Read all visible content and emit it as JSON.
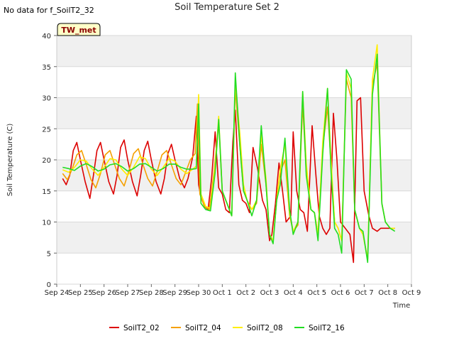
{
  "header": {
    "title": "Soil Temperature Set 2",
    "no_data_note": "No data for f_SoilT2_32"
  },
  "chart_data": {
    "type": "line",
    "title": "Soil Temperature Set 2",
    "xlabel": "Time",
    "ylabel": "Soil Temperature (C)",
    "badge": "TW_met",
    "ylim": [
      0,
      40
    ],
    "yticks": [
      0,
      5,
      10,
      15,
      20,
      25,
      30,
      35,
      40
    ],
    "xlim": [
      0,
      15
    ],
    "xtick_positions": [
      0,
      1,
      2,
      3,
      4,
      5,
      6,
      7,
      8,
      9,
      10,
      11,
      12,
      13,
      14,
      15
    ],
    "xtick_labels": [
      "Sep 24",
      "Sep 25",
      "Sep 26",
      "Sep 27",
      "Sep 28",
      "Sep 29",
      "Sep 30",
      "Oct 1",
      "Oct 2",
      "Oct 3",
      "Oct 4",
      "Oct 5",
      "Oct 6",
      "Oct 7",
      "Oct 8",
      "Oct 9"
    ],
    "grid": true,
    "legend_position": "bottom",
    "x_units": "days since Sep 24",
    "series": [
      {
        "name": "SoilT2_02",
        "color": "#dd0000",
        "x": [
          0.25,
          0.4,
          0.55,
          0.7,
          0.85,
          1.0,
          1.2,
          1.4,
          1.55,
          1.7,
          1.85,
          2.0,
          2.2,
          2.4,
          2.55,
          2.7,
          2.85,
          3.0,
          3.2,
          3.4,
          3.55,
          3.7,
          3.85,
          4.0,
          4.2,
          4.4,
          4.55,
          4.7,
          4.85,
          5.0,
          5.2,
          5.4,
          5.55,
          5.75,
          5.9,
          6.0,
          6.1,
          6.25,
          6.4,
          6.55,
          6.7,
          6.85,
          7.0,
          7.15,
          7.3,
          7.45,
          7.55,
          7.7,
          7.85,
          8.0,
          8.15,
          8.3,
          8.5,
          8.7,
          8.85,
          9.0,
          9.1,
          9.25,
          9.4,
          9.55,
          9.7,
          9.9,
          10.0,
          10.15,
          10.3,
          10.45,
          10.6,
          10.8,
          10.95,
          11.1,
          11.25,
          11.4,
          11.55,
          11.7,
          11.85,
          12.0,
          12.2,
          12.4,
          12.55,
          12.7,
          12.85,
          13.0,
          13.2,
          13.35,
          13.55,
          13.7,
          13.85,
          14.0,
          14.15,
          14.3
        ],
        "y": [
          17.0,
          16.0,
          17.5,
          21.5,
          22.8,
          20.0,
          16.5,
          13.8,
          17.5,
          21.5,
          22.8,
          20.0,
          16.5,
          14.5,
          17.5,
          22.0,
          23.2,
          20.0,
          16.5,
          14.2,
          17.5,
          21.5,
          23.0,
          20.0,
          16.5,
          14.5,
          17.0,
          21.0,
          22.5,
          20.0,
          17.0,
          15.5,
          17.0,
          20.5,
          27.0,
          16.0,
          14.0,
          12.5,
          12.0,
          17.0,
          24.5,
          15.5,
          14.5,
          12.0,
          11.5,
          23.0,
          28.0,
          16.0,
          13.5,
          13.0,
          11.5,
          22.0,
          18.5,
          13.5,
          12.0,
          7.0,
          8.0,
          13.0,
          19.5,
          15.0,
          10.0,
          11.0,
          24.5,
          15.0,
          12.0,
          11.5,
          8.5,
          25.5,
          18.0,
          11.0,
          9.0,
          8.0,
          9.0,
          27.5,
          20.0,
          10.0,
          9.0,
          8.0,
          3.5,
          29.5,
          30.0,
          15.0,
          11.0,
          9.0,
          8.5,
          9.0,
          9.0,
          9.0,
          9.0,
          9.0
        ]
      },
      {
        "name": "SoilT2_04",
        "color": "#f5a000",
        "x": [
          0.25,
          0.45,
          0.65,
          0.85,
          1.05,
          1.25,
          1.45,
          1.65,
          1.85,
          2.05,
          2.25,
          2.45,
          2.65,
          2.85,
          3.05,
          3.25,
          3.45,
          3.65,
          3.85,
          4.05,
          4.25,
          4.45,
          4.65,
          4.85,
          5.05,
          5.25,
          5.45,
          5.65,
          5.85,
          5.95,
          6.05,
          6.25,
          6.45,
          6.65,
          6.85,
          7.0,
          7.2,
          7.4,
          7.55,
          7.75,
          7.9,
          8.05,
          8.25,
          8.45,
          8.65,
          8.85,
          9.0,
          9.15,
          9.3,
          9.45,
          9.65,
          9.85,
          10.0,
          10.2,
          10.4,
          10.55,
          10.75,
          10.9,
          11.05,
          11.25,
          11.45,
          11.6,
          11.75,
          11.9,
          12.05,
          12.25,
          12.45,
          12.6,
          12.8,
          12.95,
          13.15,
          13.35,
          13.55,
          13.75,
          13.9,
          14.1,
          14.3
        ],
        "y": [
          17.8,
          16.8,
          18.5,
          20.8,
          21.5,
          19.2,
          16.8,
          15.5,
          17.8,
          20.8,
          21.5,
          19.2,
          17.0,
          15.8,
          18.2,
          21.0,
          21.8,
          19.2,
          17.0,
          15.8,
          18.2,
          20.8,
          21.5,
          19.2,
          17.0,
          16.0,
          18.0,
          20.0,
          21.0,
          29.0,
          14.5,
          12.5,
          12.0,
          18.0,
          26.0,
          15.0,
          13.0,
          11.0,
          31.5,
          22.0,
          15.0,
          13.5,
          12.0,
          13.0,
          22.5,
          16.0,
          8.0,
          7.0,
          13.5,
          18.0,
          20.0,
          11.0,
          8.5,
          9.5,
          29.0,
          18.0,
          12.0,
          11.5,
          8.0,
          22.0,
          28.5,
          19.0,
          10.0,
          9.0,
          7.0,
          33.0,
          30.0,
          12.0,
          9.0,
          8.0,
          4.0,
          32.0,
          35.5,
          13.0,
          10.0,
          9.0,
          9.0
        ]
      },
      {
        "name": "SoilT2_08",
        "color": "#ffee00",
        "x": [
          0.25,
          0.5,
          0.75,
          1.0,
          1.25,
          1.5,
          1.75,
          2.0,
          2.25,
          2.5,
          2.75,
          3.0,
          3.25,
          3.5,
          3.75,
          4.0,
          4.25,
          4.5,
          4.75,
          5.0,
          5.25,
          5.5,
          5.75,
          5.9,
          6.0,
          6.1,
          6.3,
          6.5,
          6.7,
          6.85,
          7.0,
          7.2,
          7.4,
          7.55,
          7.75,
          7.9,
          8.05,
          8.25,
          8.45,
          8.65,
          8.85,
          9.0,
          9.15,
          9.3,
          9.45,
          9.65,
          9.85,
          10.0,
          10.2,
          10.4,
          10.55,
          10.75,
          10.9,
          11.05,
          11.25,
          11.45,
          11.6,
          11.75,
          11.9,
          12.05,
          12.25,
          12.45,
          12.6,
          12.8,
          12.95,
          13.15,
          13.35,
          13.55,
          13.75,
          13.9,
          14.1,
          14.3
        ],
        "y": [
          18.4,
          18.0,
          18.8,
          20.0,
          19.8,
          18.5,
          17.5,
          18.8,
          20.2,
          20.0,
          18.5,
          17.5,
          18.8,
          20.5,
          20.2,
          18.5,
          17.5,
          18.8,
          20.2,
          19.8,
          18.5,
          17.8,
          18.5,
          19.0,
          30.5,
          14.5,
          12.5,
          12.2,
          19.0,
          27.0,
          15.0,
          13.0,
          11.0,
          32.5,
          24.0,
          16.0,
          13.5,
          12.0,
          13.5,
          24.0,
          17.0,
          8.0,
          7.0,
          13.5,
          18.5,
          22.5,
          11.5,
          8.5,
          10.0,
          31.0,
          19.5,
          12.0,
          11.5,
          8.0,
          23.0,
          31.5,
          20.0,
          10.0,
          9.0,
          7.0,
          34.0,
          31.5,
          12.0,
          9.0,
          8.0,
          4.0,
          33.0,
          38.5,
          13.0,
          10.0,
          9.0,
          9.0
        ]
      },
      {
        "name": "SoilT2_16",
        "color": "#22dd22",
        "x": [
          0.25,
          0.5,
          0.75,
          1.0,
          1.25,
          1.5,
          1.75,
          2.0,
          2.25,
          2.5,
          2.75,
          3.0,
          3.25,
          3.5,
          3.75,
          4.0,
          4.25,
          4.5,
          4.75,
          5.0,
          5.25,
          5.5,
          5.75,
          5.9,
          6.0,
          6.1,
          6.3,
          6.5,
          6.7,
          6.85,
          7.0,
          7.2,
          7.4,
          7.55,
          7.75,
          7.9,
          8.05,
          8.25,
          8.45,
          8.65,
          8.85,
          9.0,
          9.15,
          9.3,
          9.45,
          9.65,
          9.85,
          10.0,
          10.2,
          10.4,
          10.55,
          10.75,
          10.9,
          11.05,
          11.25,
          11.45,
          11.6,
          11.75,
          11.9,
          12.05,
          12.25,
          12.45,
          12.6,
          12.8,
          12.95,
          13.15,
          13.35,
          13.55,
          13.75,
          13.9,
          14.1,
          14.3
        ],
        "y": [
          18.8,
          18.6,
          18.3,
          19.0,
          19.4,
          18.9,
          18.2,
          18.5,
          19.2,
          19.4,
          18.9,
          18.2,
          18.6,
          19.3,
          19.4,
          18.8,
          18.2,
          18.6,
          19.3,
          19.3,
          18.8,
          18.5,
          18.5,
          18.6,
          29.0,
          13.0,
          12.0,
          11.8,
          18.0,
          26.5,
          15.0,
          13.0,
          11.0,
          34.0,
          22.0,
          15.0,
          13.5,
          11.0,
          13.5,
          25.5,
          16.0,
          8.0,
          6.5,
          13.5,
          16.0,
          23.5,
          12.0,
          8.0,
          10.0,
          31.0,
          17.5,
          12.0,
          11.5,
          7.0,
          21.0,
          31.5,
          18.0,
          9.0,
          8.0,
          5.0,
          34.5,
          33.0,
          12.0,
          9.0,
          8.5,
          3.5,
          30.5,
          37.0,
          13.0,
          10.0,
          9.0,
          8.5
        ]
      }
    ]
  }
}
